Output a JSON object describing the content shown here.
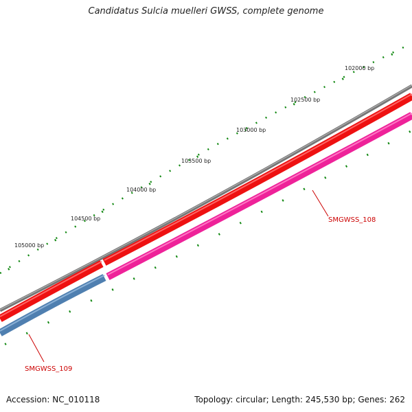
{
  "title": "Candidatus Sulcia muelleri GWSS, complete genome",
  "footer": {
    "accession": "Accession: NC_010118",
    "summary": "Topology: circular; Length: 245,530 bp; Genes: 262"
  },
  "scale_ticks": [
    "102000 bp",
    "102500 bp",
    "103000 bp",
    "103500 bp",
    "104000 bp",
    "104500 bp",
    "105000 bp"
  ],
  "genes": [
    {
      "name": "SMGWSS_108",
      "strand": "reverse",
      "color": "#ee2299"
    },
    {
      "name": "SMGWSS_109",
      "strand": "reverse",
      "color": "#4f7fb0"
    }
  ],
  "forward_feature_color": "#ee1111",
  "backbone_color": "#777777",
  "tick_color": "#118811",
  "label_color": "#cc0000"
}
